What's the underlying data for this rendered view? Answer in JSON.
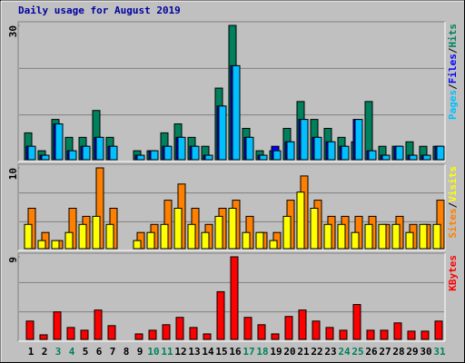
{
  "chart_data": [
    {
      "type": "bar",
      "title": "Daily usage for August 2019",
      "title_color": "#0000a0",
      "ylim": [
        0,
        30
      ],
      "yticks": [
        30
      ],
      "legend_separator": "/",
      "series": [
        {
          "name": "Hits",
          "color": "#00805c",
          "values": [
            6,
            2,
            9,
            5,
            5,
            11,
            5,
            0,
            2,
            2,
            6,
            8,
            5,
            3,
            16,
            30,
            7,
            2,
            2,
            7,
            13,
            9,
            7,
            5,
            4,
            13,
            3,
            3,
            4,
            3,
            3
          ]
        },
        {
          "name": "Files",
          "color": "#0000ff",
          "values": [
            3,
            1,
            8,
            2,
            3,
            5,
            3,
            0,
            1,
            2,
            3,
            5,
            3,
            1,
            12,
            21,
            5,
            1,
            3,
            4,
            9,
            5,
            4,
            3,
            9,
            2,
            1,
            3,
            1,
            1,
            3
          ]
        },
        {
          "name": "Pages",
          "color": "#00c0ff",
          "values": [
            3,
            1,
            8,
            2,
            3,
            5,
            3,
            0,
            1,
            2,
            3,
            5,
            3,
            1,
            12,
            21,
            5,
            1,
            2,
            4,
            9,
            5,
            4,
            3,
            9,
            2,
            1,
            3,
            1,
            1,
            3
          ]
        }
      ]
    },
    {
      "type": "bar",
      "ylim": [
        0,
        10
      ],
      "yticks": [
        10
      ],
      "legend_separator": "/",
      "series": [
        {
          "name": "Visits",
          "color": "#ffff00",
          "values": [
            3,
            1,
            1,
            2,
            3,
            4,
            3,
            0,
            1,
            2,
            3,
            5,
            3,
            2,
            4,
            5,
            2,
            2,
            1,
            4,
            7,
            5,
            3,
            3,
            2,
            3,
            3,
            3,
            2,
            3,
            3
          ]
        },
        {
          "name": "Sites",
          "color": "#ff8000",
          "values": [
            5,
            2,
            1,
            5,
            4,
            10,
            5,
            0,
            2,
            3,
            6,
            8,
            5,
            3,
            5,
            6,
            4,
            2,
            2,
            6,
            9,
            6,
            4,
            4,
            4,
            4,
            3,
            4,
            3,
            3,
            6
          ]
        }
      ]
    },
    {
      "type": "bar",
      "ylim": [
        0,
        9
      ],
      "yticks": [
        9
      ],
      "categories": [
        "1",
        "2",
        "3",
        "4",
        "5",
        "6",
        "7",
        "8",
        "9",
        "10",
        "11",
        "12",
        "13",
        "14",
        "15",
        "16",
        "17",
        "18",
        "19",
        "20",
        "21",
        "22",
        "23",
        "24",
        "25",
        "26",
        "27",
        "28",
        "29",
        "30",
        "31"
      ],
      "category_colors": [
        "#000000",
        "#000000",
        "#00805c",
        "#00805c",
        "#000000",
        "#000000",
        "#000000",
        "#000000",
        "#000000",
        "#00805c",
        "#00805c",
        "#000000",
        "#000000",
        "#000000",
        "#000000",
        "#000000",
        "#00805c",
        "#00805c",
        "#000000",
        "#000000",
        "#000000",
        "#000000",
        "#000000",
        "#00805c",
        "#00805c",
        "#000000",
        "#000000",
        "#000000",
        "#000000",
        "#000000",
        "#00805c"
      ],
      "series": [
        {
          "name": "KBytes",
          "color": "#ff0000",
          "values": [
            2,
            0.5,
            3,
            1.3,
            1,
            3.2,
            1.5,
            0,
            0.6,
            1,
            1.6,
            2.4,
            1.3,
            0.6,
            5.2,
            9,
            2.4,
            1.6,
            0.6,
            2.5,
            3.2,
            2,
            1.3,
            1,
            3.8,
            1,
            1,
            1.8,
            0.9,
            0.9,
            2
          ]
        }
      ]
    }
  ]
}
